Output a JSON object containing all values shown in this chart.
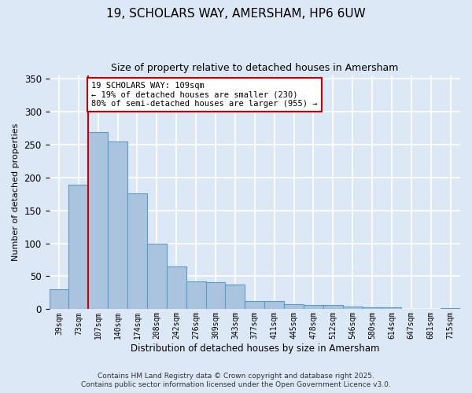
{
  "title_line1": "19, SCHOLARS WAY, AMERSHAM, HP6 6UW",
  "title_line2": "Size of property relative to detached houses in Amersham",
  "xlabel": "Distribution of detached houses by size in Amersham",
  "ylabel": "Number of detached properties",
  "categories": [
    "39sqm",
    "73sqm",
    "107sqm",
    "140sqm",
    "174sqm",
    "208sqm",
    "242sqm",
    "276sqm",
    "309sqm",
    "343sqm",
    "377sqm",
    "411sqm",
    "445sqm",
    "478sqm",
    "512sqm",
    "546sqm",
    "580sqm",
    "614sqm",
    "647sqm",
    "681sqm",
    "715sqm"
  ],
  "values": [
    30,
    189,
    269,
    254,
    176,
    100,
    65,
    42,
    41,
    38,
    12,
    12,
    8,
    7,
    6,
    4,
    3,
    3,
    1,
    0,
    2
  ],
  "bar_color": "#aac4df",
  "bar_edge_color": "#5a9cc5",
  "background_color": "#dce8f5",
  "grid_color": "#ffffff",
  "vline_x_index": 2,
  "vline_color": "#cc0000",
  "annotation_title": "19 SCHOLARS WAY: 109sqm",
  "annotation_line1": "← 19% of detached houses are smaller (230)",
  "annotation_line2": "80% of semi-detached houses are larger (955) →",
  "annotation_box_color": "#ffffff",
  "annotation_box_edge": "#cc0000",
  "footer_line1": "Contains HM Land Registry data © Crown copyright and database right 2025.",
  "footer_line2": "Contains public sector information licensed under the Open Government Licence v3.0.",
  "ylim": [
    0,
    355
  ],
  "yticks": [
    0,
    50,
    100,
    150,
    200,
    250,
    300,
    350
  ]
}
